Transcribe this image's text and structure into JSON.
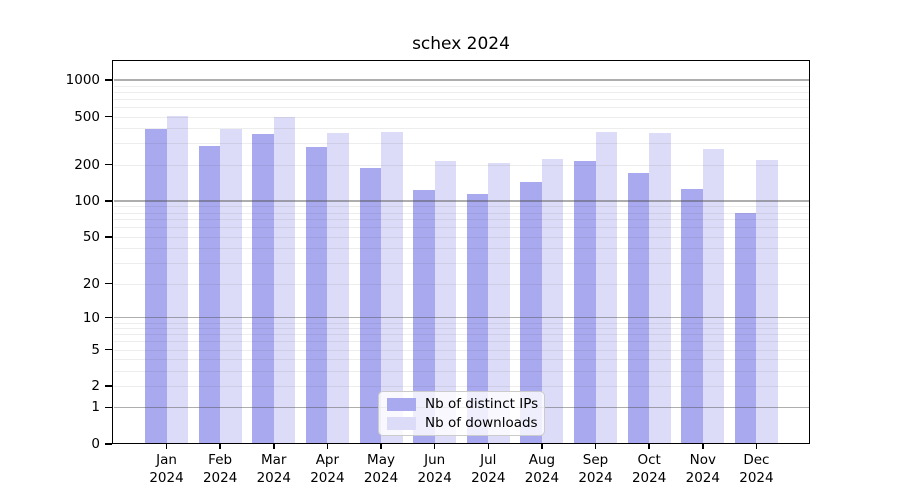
{
  "chart_data": {
    "type": "bar",
    "title": "schex 2024",
    "categories": [
      "Jan",
      "Feb",
      "Mar",
      "Apr",
      "May",
      "Jun",
      "Jul",
      "Aug",
      "Sep",
      "Oct",
      "Nov",
      "Dec"
    ],
    "year_label": "2024",
    "series": [
      {
        "name": "Nb of distinct IPs",
        "color": "#a9a9f0",
        "values": [
          394,
          285,
          356,
          280,
          186,
          122,
          113,
          143,
          215,
          172,
          126,
          80
        ]
      },
      {
        "name": "Nb of downloads",
        "color": "#dcdcf8",
        "values": [
          505,
          394,
          495,
          363,
          371,
          213,
          205,
          223,
          372,
          362,
          268,
          218
        ]
      }
    ],
    "xlabel": "",
    "ylabel": "",
    "y_scale": "log10(1+v)",
    "ylim": [
      0,
      1400
    ],
    "y_ticks": [
      0,
      1,
      2,
      5,
      10,
      20,
      50,
      100,
      200,
      500,
      1000
    ],
    "grid": {
      "on": true,
      "major": [
        1,
        10,
        100,
        1000
      ],
      "minor": [
        2,
        3,
        4,
        5,
        6,
        7,
        8,
        9,
        20,
        30,
        40,
        50,
        60,
        70,
        80,
        90,
        200,
        300,
        400,
        500,
        600,
        700,
        800,
        900
      ]
    },
    "legend_position": "lower-center-inside"
  }
}
